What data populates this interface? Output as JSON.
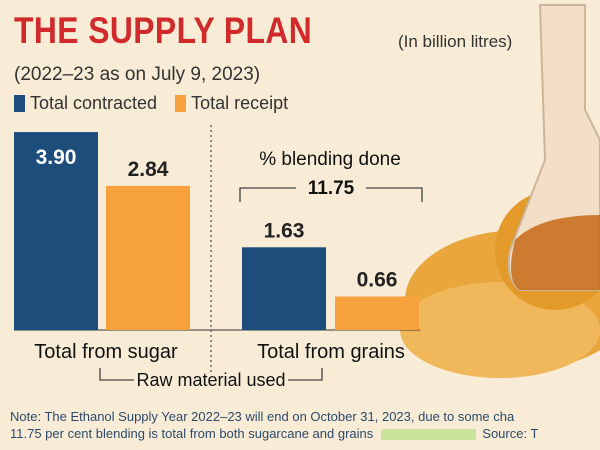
{
  "header": {
    "title": "THE SUPPLY PLAN",
    "subtitle": "(2022–23 as on July 9, 2023)",
    "unit": "(In billion litres)"
  },
  "colors": {
    "contracted": "#1d4e7b",
    "receipt": "#f7a13c",
    "title": "#d02a2a"
  },
  "chart_data": {
    "type": "bar",
    "categories": [
      "Total from sugar",
      "Total from grains"
    ],
    "series": [
      {
        "name": "Total contracted",
        "values": [
          3.9,
          1.63
        ]
      },
      {
        "name": "Total receipt",
        "values": [
          2.84,
          0.66
        ]
      }
    ],
    "value_labels": [
      [
        "3.90",
        "2.84"
      ],
      [
        "1.63",
        "0.66"
      ]
    ],
    "ylim": [
      0,
      4
    ],
    "legend_position": "top-left",
    "grid": false,
    "annotations": {
      "blending_label": "% blending done",
      "blending_value": "11.75",
      "group_label": "Raw material used"
    }
  },
  "note": {
    "line1": "Note: The Ethanol Supply Year 2022–23 will end on October 31, 2023, due to some cha",
    "line2": "11.75 per cent blending is total from both sugarcane and grains",
    "source": "Source: T"
  }
}
